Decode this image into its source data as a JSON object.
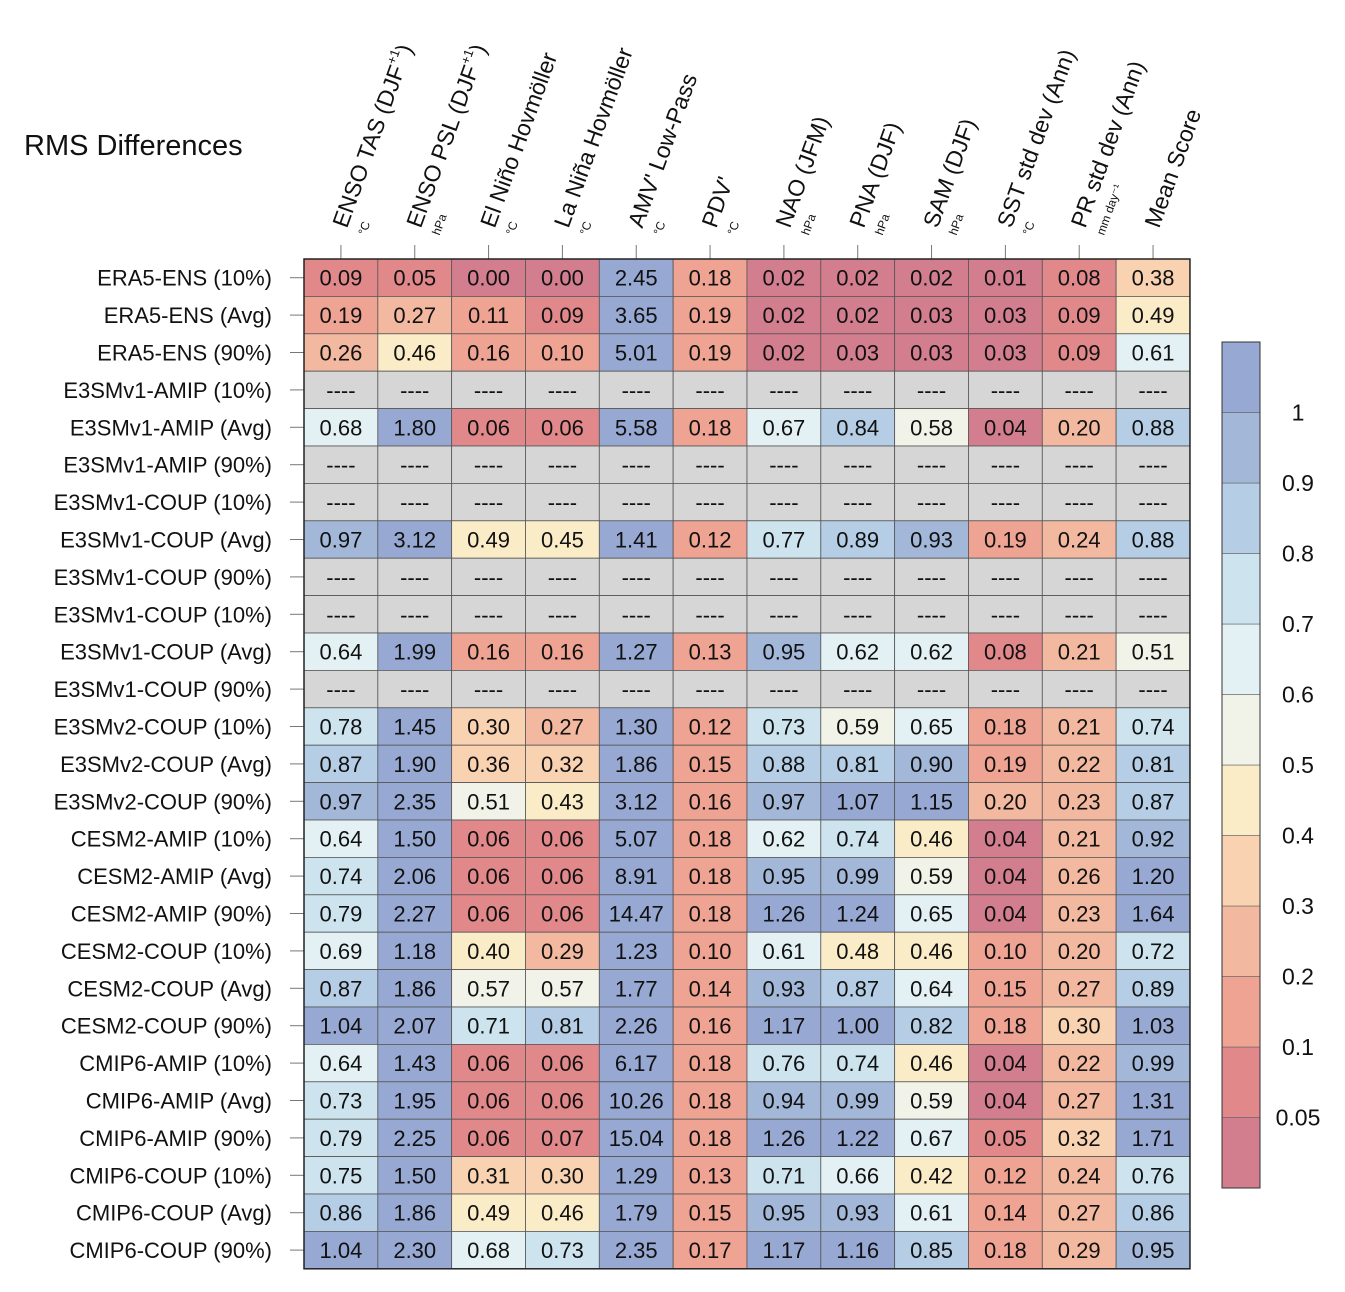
{
  "title": "RMS Differences",
  "chart_data": {
    "type": "heatmap",
    "title": "RMS Differences",
    "columns": [
      {
        "name": "ENSO TAS (DJF",
        "sup": "+1",
        "close": ")",
        "unit": "°C"
      },
      {
        "name": "ENSO PSL (DJF",
        "sup": "+1",
        "close": ")",
        "unit": "hPa"
      },
      {
        "name": "El Niño Hovmöller",
        "sup": "",
        "close": "",
        "unit": "°C"
      },
      {
        "name": "La Niña Hovmöller",
        "sup": "",
        "close": "",
        "unit": "°C"
      },
      {
        "name": "AMV' Low-Pass",
        "sup": "",
        "close": "",
        "unit": "°C"
      },
      {
        "name": "PDV'",
        "sup": "",
        "close": "",
        "unit": "°C"
      },
      {
        "name": "NAO (JFM)",
        "sup": "",
        "close": "",
        "unit": "hPa"
      },
      {
        "name": "PNA (DJF)",
        "sup": "",
        "close": "",
        "unit": "hPa"
      },
      {
        "name": "SAM (DJF)",
        "sup": "",
        "close": "",
        "unit": "hPa"
      },
      {
        "name": "SST std dev (Ann)",
        "sup": "",
        "close": "",
        "unit": "°C"
      },
      {
        "name": "PR std dev (Ann)",
        "sup": "",
        "close": "",
        "unit": "mm day⁻¹"
      },
      {
        "name": "Mean Score",
        "sup": "",
        "close": "",
        "unit": ""
      }
    ],
    "rows": [
      "ERA5-ENS (10%)",
      "ERA5-ENS (Avg)",
      "ERA5-ENS (90%)",
      "E3SMv1-AMIP (10%)",
      "E3SMv1-AMIP (Avg)",
      "E3SMv1-AMIP (90%)",
      "E3SMv1-COUP (10%)",
      "E3SMv1-COUP (Avg)",
      "E3SMv1-COUP (90%)",
      "E3SMv1-COUP (10%)",
      "E3SMv1-COUP (Avg)",
      "E3SMv1-COUP (90%)",
      "E3SMv2-COUP (10%)",
      "E3SMv2-COUP (Avg)",
      "E3SMv2-COUP (90%)",
      "CESM2-AMIP (10%)",
      "CESM2-AMIP (Avg)",
      "CESM2-AMIP (90%)",
      "CESM2-COUP (10%)",
      "CESM2-COUP (Avg)",
      "CESM2-COUP (90%)",
      "CMIP6-AMIP (10%)",
      "CMIP6-AMIP (Avg)",
      "CMIP6-AMIP (90%)",
      "CMIP6-COUP (10%)",
      "CMIP6-COUP (Avg)",
      "CMIP6-COUP (90%)"
    ],
    "values": [
      [
        "0.09",
        "0.05",
        "0.00",
        "0.00",
        "2.45",
        "0.18",
        "0.02",
        "0.02",
        "0.02",
        "0.01",
        "0.08",
        "0.38"
      ],
      [
        "0.19",
        "0.27",
        "0.11",
        "0.09",
        "3.65",
        "0.19",
        "0.02",
        "0.02",
        "0.03",
        "0.03",
        "0.09",
        "0.49"
      ],
      [
        "0.26",
        "0.46",
        "0.16",
        "0.10",
        "5.01",
        "0.19",
        "0.02",
        "0.03",
        "0.03",
        "0.03",
        "0.09",
        "0.61"
      ],
      [
        "----",
        "----",
        "----",
        "----",
        "----",
        "----",
        "----",
        "----",
        "----",
        "----",
        "----",
        "----"
      ],
      [
        "0.68",
        "1.80",
        "0.06",
        "0.06",
        "5.58",
        "0.18",
        "0.67",
        "0.84",
        "0.58",
        "0.04",
        "0.20",
        "0.88"
      ],
      [
        "----",
        "----",
        "----",
        "----",
        "----",
        "----",
        "----",
        "----",
        "----",
        "----",
        "----",
        "----"
      ],
      [
        "----",
        "----",
        "----",
        "----",
        "----",
        "----",
        "----",
        "----",
        "----",
        "----",
        "----",
        "----"
      ],
      [
        "0.97",
        "3.12",
        "0.49",
        "0.45",
        "1.41",
        "0.12",
        "0.77",
        "0.89",
        "0.93",
        "0.19",
        "0.24",
        "0.88"
      ],
      [
        "----",
        "----",
        "----",
        "----",
        "----",
        "----",
        "----",
        "----",
        "----",
        "----",
        "----",
        "----"
      ],
      [
        "----",
        "----",
        "----",
        "----",
        "----",
        "----",
        "----",
        "----",
        "----",
        "----",
        "----",
        "----"
      ],
      [
        "0.64",
        "1.99",
        "0.16",
        "0.16",
        "1.27",
        "0.13",
        "0.95",
        "0.62",
        "0.62",
        "0.08",
        "0.21",
        "0.51"
      ],
      [
        "----",
        "----",
        "----",
        "----",
        "----",
        "----",
        "----",
        "----",
        "----",
        "----",
        "----",
        "----"
      ],
      [
        "0.78",
        "1.45",
        "0.30",
        "0.27",
        "1.30",
        "0.12",
        "0.73",
        "0.59",
        "0.65",
        "0.18",
        "0.21",
        "0.74"
      ],
      [
        "0.87",
        "1.90",
        "0.36",
        "0.32",
        "1.86",
        "0.15",
        "0.88",
        "0.81",
        "0.90",
        "0.19",
        "0.22",
        "0.81"
      ],
      [
        "0.97",
        "2.35",
        "0.51",
        "0.43",
        "3.12",
        "0.16",
        "0.97",
        "1.07",
        "1.15",
        "0.20",
        "0.23",
        "0.87"
      ],
      [
        "0.64",
        "1.50",
        "0.06",
        "0.06",
        "5.07",
        "0.18",
        "0.62",
        "0.74",
        "0.46",
        "0.04",
        "0.21",
        "0.92"
      ],
      [
        "0.74",
        "2.06",
        "0.06",
        "0.06",
        "8.91",
        "0.18",
        "0.95",
        "0.99",
        "0.59",
        "0.04",
        "0.26",
        "1.20"
      ],
      [
        "0.79",
        "2.27",
        "0.06",
        "0.06",
        "14.47",
        "0.18",
        "1.26",
        "1.24",
        "0.65",
        "0.04",
        "0.23",
        "1.64"
      ],
      [
        "0.69",
        "1.18",
        "0.40",
        "0.29",
        "1.23",
        "0.10",
        "0.61",
        "0.48",
        "0.46",
        "0.10",
        "0.20",
        "0.72"
      ],
      [
        "0.87",
        "1.86",
        "0.57",
        "0.57",
        "1.77",
        "0.14",
        "0.93",
        "0.87",
        "0.64",
        "0.15",
        "0.27",
        "0.89"
      ],
      [
        "1.04",
        "2.07",
        "0.71",
        "0.81",
        "2.26",
        "0.16",
        "1.17",
        "1.00",
        "0.82",
        "0.18",
        "0.30",
        "1.03"
      ],
      [
        "0.64",
        "1.43",
        "0.06",
        "0.06",
        "6.17",
        "0.18",
        "0.76",
        "0.74",
        "0.46",
        "0.04",
        "0.22",
        "0.99"
      ],
      [
        "0.73",
        "1.95",
        "0.06",
        "0.06",
        "10.26",
        "0.18",
        "0.94",
        "0.99",
        "0.59",
        "0.04",
        "0.27",
        "1.31"
      ],
      [
        "0.79",
        "2.25",
        "0.06",
        "0.07",
        "15.04",
        "0.18",
        "1.26",
        "1.22",
        "0.67",
        "0.05",
        "0.32",
        "1.71"
      ],
      [
        "0.75",
        "1.50",
        "0.31",
        "0.30",
        "1.29",
        "0.13",
        "0.71",
        "0.66",
        "0.42",
        "0.12",
        "0.24",
        "0.76"
      ],
      [
        "0.86",
        "1.86",
        "0.49",
        "0.46",
        "1.79",
        "0.15",
        "0.95",
        "0.93",
        "0.61",
        "0.14",
        "0.27",
        "0.86"
      ],
      [
        "1.04",
        "2.30",
        "0.68",
        "0.73",
        "2.35",
        "0.17",
        "1.17",
        "1.16",
        "0.85",
        "0.18",
        "0.29",
        "0.95"
      ]
    ],
    "missing_marker": "----",
    "missing_color": "#d6d6d6",
    "colorbar": {
      "bounds": [
        0.05,
        0.1,
        0.2,
        0.3,
        0.4,
        0.5,
        0.6,
        0.7,
        0.8,
        0.9,
        1
      ],
      "tick_labels": [
        "0.05",
        "0.1",
        "0.2",
        "0.3",
        "0.4",
        "0.5",
        "0.6",
        "0.7",
        "0.8",
        "0.9",
        "1"
      ],
      "colors": [
        "#d27e8e",
        "#e1888b",
        "#eea393",
        "#f3b9a0",
        "#f8d2b1",
        "#fbecc8",
        "#f2f3e8",
        "#e3f1f5",
        "#cde4ef",
        "#b5cee5",
        "#a3b7d9",
        "#97a8d2"
      ]
    }
  }
}
